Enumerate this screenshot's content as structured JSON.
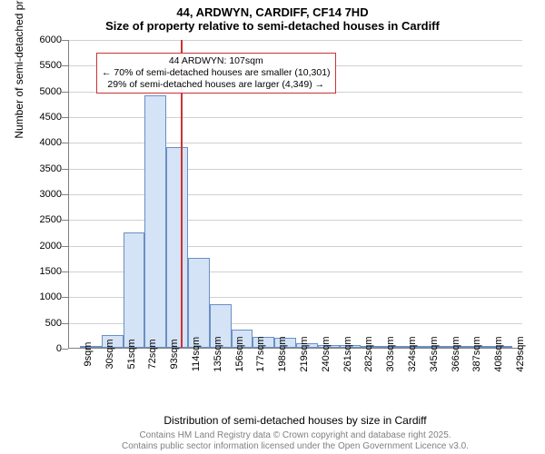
{
  "chart": {
    "type": "histogram",
    "title_main": "44, ARDWYN, CARDIFF, CF14 7HD",
    "title_sub": "Size of property relative to semi-detached houses in Cardiff",
    "y_axis": {
      "title": "Number of semi-detached properties",
      "min": 0,
      "max": 6000,
      "step": 500
    },
    "x_axis": {
      "title": "Distribution of semi-detached houses by size in Cardiff",
      "labels": [
        "9sqm",
        "30sqm",
        "51sqm",
        "72sqm",
        "93sqm",
        "114sqm",
        "135sqm",
        "156sqm",
        "177sqm",
        "198sqm",
        "219sqm",
        "240sqm",
        "261sqm",
        "282sqm",
        "303sqm",
        "324sqm",
        "345sqm",
        "366sqm",
        "387sqm",
        "408sqm",
        "429sqm"
      ]
    },
    "bars": [
      {
        "x_index": 0,
        "value": 10
      },
      {
        "x_index": 1,
        "value": 250
      },
      {
        "x_index": 2,
        "value": 2250
      },
      {
        "x_index": 3,
        "value": 4900
      },
      {
        "x_index": 4,
        "value": 3900
      },
      {
        "x_index": 5,
        "value": 1750
      },
      {
        "x_index": 6,
        "value": 840
      },
      {
        "x_index": 7,
        "value": 350
      },
      {
        "x_index": 8,
        "value": 220
      },
      {
        "x_index": 9,
        "value": 190
      },
      {
        "x_index": 10,
        "value": 90
      },
      {
        "x_index": 11,
        "value": 60
      },
      {
        "x_index": 12,
        "value": 50
      },
      {
        "x_index": 13,
        "value": 25
      },
      {
        "x_index": 14,
        "value": 20
      },
      {
        "x_index": 15,
        "value": 15
      },
      {
        "x_index": 16,
        "value": 10
      },
      {
        "x_index": 17,
        "value": 10
      },
      {
        "x_index": 18,
        "value": 8
      },
      {
        "x_index": 19,
        "value": 6
      }
    ],
    "marker": {
      "sqm": 107,
      "x_min_sqm": 9,
      "x_max_sqm": 429
    },
    "callout": {
      "line1": "44 ARDWYN: 107sqm",
      "line2": "← 70% of semi-detached houses are smaller (10,301)",
      "line3": "29% of semi-detached houses are larger (4,349) →"
    },
    "colors": {
      "bar_fill": "#d4e3f5",
      "bar_border": "#6a8fc4",
      "marker": "#cc3333",
      "grid": "#d0d0d0",
      "axis": "#808080",
      "text": "#000000",
      "footer": "#808080",
      "background": "#ffffff"
    },
    "footer": {
      "line1": "Contains HM Land Registry data © Crown copyright and database right 2025.",
      "line2": "Contains public sector information licensed under the Open Government Licence v3.0."
    }
  }
}
